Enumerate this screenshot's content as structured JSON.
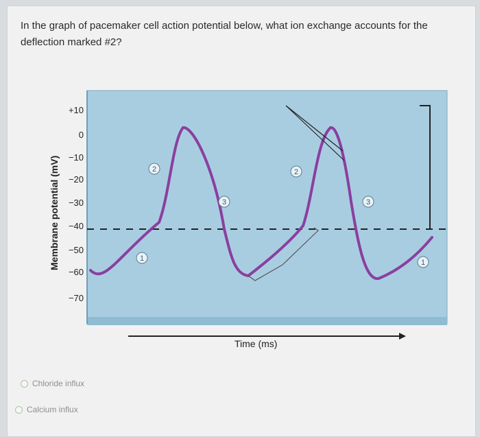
{
  "question": {
    "text": "In the graph of pacemaker cell action potential below, what ion exchange accounts for the deflection marked #2?"
  },
  "chart_data": {
    "type": "line",
    "title": "",
    "ylabel": "Membrane potential (mV)",
    "xlabel": "Time (ms)",
    "y_ticks": [
      "+10",
      "0",
      "−10",
      "−20",
      "−30",
      "−40",
      "−50",
      "−60",
      "−70"
    ],
    "threshold_mV": -40,
    "ylim": [
      -75,
      15
    ],
    "markers": [
      "1",
      "2",
      "3",
      "2",
      "3",
      "1"
    ],
    "line_color": "#8a3fa0",
    "background_color": "#a9cde0"
  },
  "options": [
    {
      "label": "Chloride influx"
    },
    {
      "label": "Calcium influx"
    }
  ]
}
